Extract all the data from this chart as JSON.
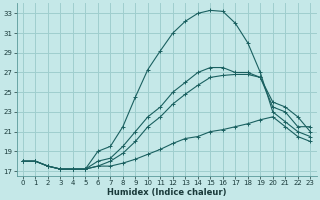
{
  "xlabel": "Humidex (Indice chaleur)",
  "bg_color": "#c5e8e8",
  "grid_color": "#9fcece",
  "line_color": "#1a6060",
  "xlim": [
    -0.5,
    23.5
  ],
  "ylim": [
    16.5,
    34
  ],
  "yticks": [
    17,
    19,
    21,
    23,
    25,
    27,
    29,
    31,
    33
  ],
  "xticks": [
    0,
    1,
    2,
    3,
    4,
    5,
    6,
    7,
    8,
    9,
    10,
    11,
    12,
    13,
    14,
    15,
    16,
    17,
    18,
    19,
    20,
    21,
    22,
    23
  ],
  "curve1_x": [
    0,
    1,
    2,
    3,
    4,
    5,
    6,
    7,
    8,
    9,
    10,
    11,
    12,
    13,
    14,
    15,
    16,
    17,
    18,
    19,
    20,
    21,
    22,
    23
  ],
  "curve1_y": [
    18.0,
    18.0,
    17.5,
    17.2,
    17.2,
    17.2,
    17.5,
    17.5,
    17.8,
    18.2,
    18.7,
    19.2,
    19.8,
    20.3,
    20.5,
    21.0,
    21.2,
    21.5,
    21.8,
    22.2,
    22.5,
    21.5,
    20.5,
    20.0
  ],
  "curve2_x": [
    0,
    1,
    2,
    3,
    4,
    5,
    6,
    7,
    8,
    9,
    10,
    11,
    12,
    13,
    14,
    15,
    16,
    17,
    18,
    19,
    20,
    21,
    22,
    23
  ],
  "curve2_y": [
    18.0,
    18.0,
    17.5,
    17.2,
    17.2,
    17.2,
    18.0,
    18.3,
    19.5,
    21.0,
    22.5,
    23.5,
    25.0,
    26.0,
    27.0,
    27.5,
    27.5,
    27.0,
    27.0,
    26.5,
    24.0,
    23.5,
    22.5,
    21.0
  ],
  "curve3_x": [
    0,
    1,
    2,
    3,
    4,
    5,
    6,
    7,
    8,
    9,
    10,
    11,
    12,
    13,
    14,
    15,
    16,
    17,
    18,
    19,
    20,
    21,
    22,
    23
  ],
  "curve3_y": [
    18.0,
    18.0,
    17.5,
    17.2,
    17.2,
    17.2,
    19.0,
    19.5,
    21.5,
    24.5,
    27.3,
    29.2,
    31.0,
    32.2,
    33.0,
    33.3,
    33.2,
    32.0,
    30.0,
    27.0,
    23.0,
    22.0,
    21.0,
    20.5
  ],
  "curve4_x": [
    0,
    1,
    2,
    3,
    4,
    5,
    6,
    7,
    8,
    9,
    10,
    11,
    12,
    13,
    14,
    15,
    16,
    17,
    18,
    19,
    20,
    21,
    22,
    23
  ],
  "curve4_y": [
    18.0,
    18.0,
    17.5,
    17.2,
    17.2,
    17.2,
    17.5,
    18.0,
    18.8,
    20.0,
    21.5,
    22.5,
    23.8,
    24.8,
    25.7,
    26.5,
    26.7,
    26.8,
    26.8,
    26.5,
    23.5,
    23.0,
    21.5,
    21.5
  ]
}
